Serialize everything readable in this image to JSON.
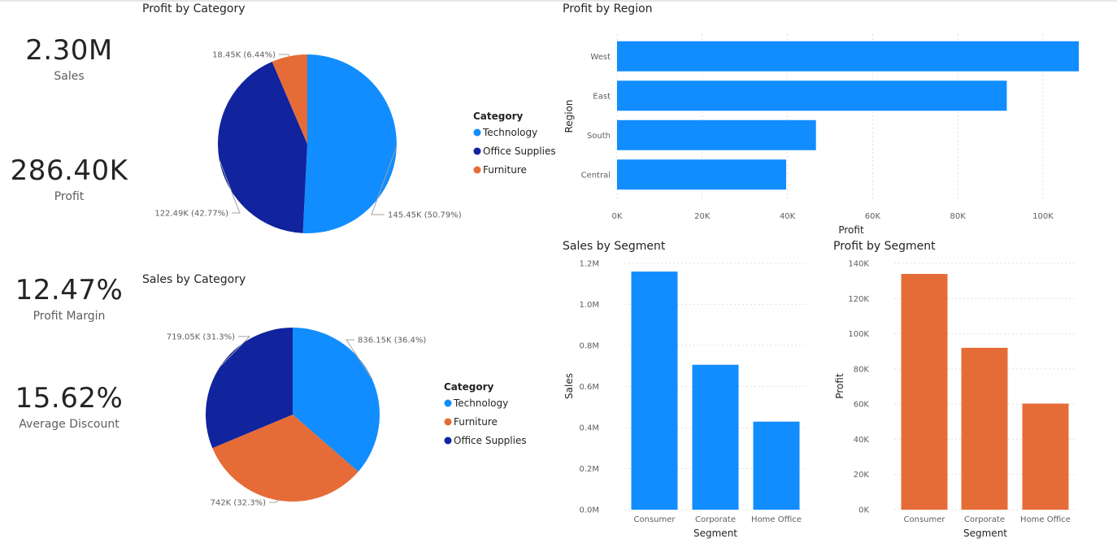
{
  "kpis": [
    {
      "value": "2.30M",
      "label": "Sales"
    },
    {
      "value": "286.40K",
      "label": "Profit"
    },
    {
      "value": "12.47%",
      "label": "Profit Margin"
    },
    {
      "value": "15.62%",
      "label": "Average Discount"
    }
  ],
  "colors": {
    "technology": "#118DFF",
    "office_supplies": "#12239E",
    "furniture": "#E66C37",
    "grid": "#e1e1e1"
  },
  "chart_data": [
    {
      "type": "pie",
      "title": "Profit by Category",
      "legend_title": "Category",
      "slices": [
        {
          "name": "Technology",
          "value": 145.45,
          "label": "145.45K (50.79%)",
          "color": "#118DFF"
        },
        {
          "name": "Office Supplies",
          "value": 122.49,
          "label": "122.49K (42.77%)",
          "color": "#12239E"
        },
        {
          "name": "Furniture",
          "value": 18.45,
          "label": "18.45K (6.44%)",
          "color": "#E66C37"
        }
      ]
    },
    {
      "type": "pie",
      "title": "Sales by Category",
      "legend_title": "Category",
      "slices": [
        {
          "name": "Technology",
          "value": 836.15,
          "label": "836.15K (36.4%)",
          "color": "#118DFF"
        },
        {
          "name": "Furniture",
          "value": 742,
          "label": "742K (32.3%)",
          "color": "#E66C37"
        },
        {
          "name": "Office Supplies",
          "value": 719.05,
          "label": "719.05K (31.3%)",
          "color": "#12239E"
        }
      ]
    },
    {
      "type": "bar",
      "orientation": "horizontal",
      "title": "Profit by Region",
      "categories": [
        "West",
        "East",
        "South",
        "Central"
      ],
      "values": [
        108400,
        91500,
        46700,
        39700
      ],
      "xlabel": "Profit",
      "ylabel": "Region",
      "xlim": [
        0,
        110000
      ],
      "ticks": [
        0,
        20000,
        40000,
        60000,
        80000,
        100000
      ],
      "tick_labels": [
        "0K",
        "20K",
        "40K",
        "60K",
        "80K",
        "100K"
      ],
      "color": "#118DFF"
    },
    {
      "type": "bar",
      "title": "Sales by Segment",
      "categories": [
        "Consumer",
        "Corporate",
        "Home Office"
      ],
      "values": [
        1160000,
        706000,
        429000
      ],
      "xlabel": "Segment",
      "ylabel": "Sales",
      "ylim": [
        0,
        1200000
      ],
      "ticks": [
        0,
        200000,
        400000,
        600000,
        800000,
        1000000,
        1200000
      ],
      "tick_labels": [
        "0.0M",
        "0.2M",
        "0.4M",
        "0.6M",
        "0.8M",
        "1.0M",
        "1.2M"
      ],
      "color": "#118DFF"
    },
    {
      "type": "bar",
      "title": "Profit by Segment",
      "categories": [
        "Consumer",
        "Corporate",
        "Home Office"
      ],
      "values": [
        134000,
        92000,
        60300
      ],
      "xlabel": "Segment",
      "ylabel": "Profit",
      "ylim": [
        0,
        140000
      ],
      "ticks": [
        0,
        20000,
        40000,
        60000,
        80000,
        100000,
        120000,
        140000
      ],
      "tick_labels": [
        "0K",
        "20K",
        "40K",
        "60K",
        "80K",
        "100K",
        "120K",
        "140K"
      ],
      "color": "#E66C37"
    }
  ]
}
